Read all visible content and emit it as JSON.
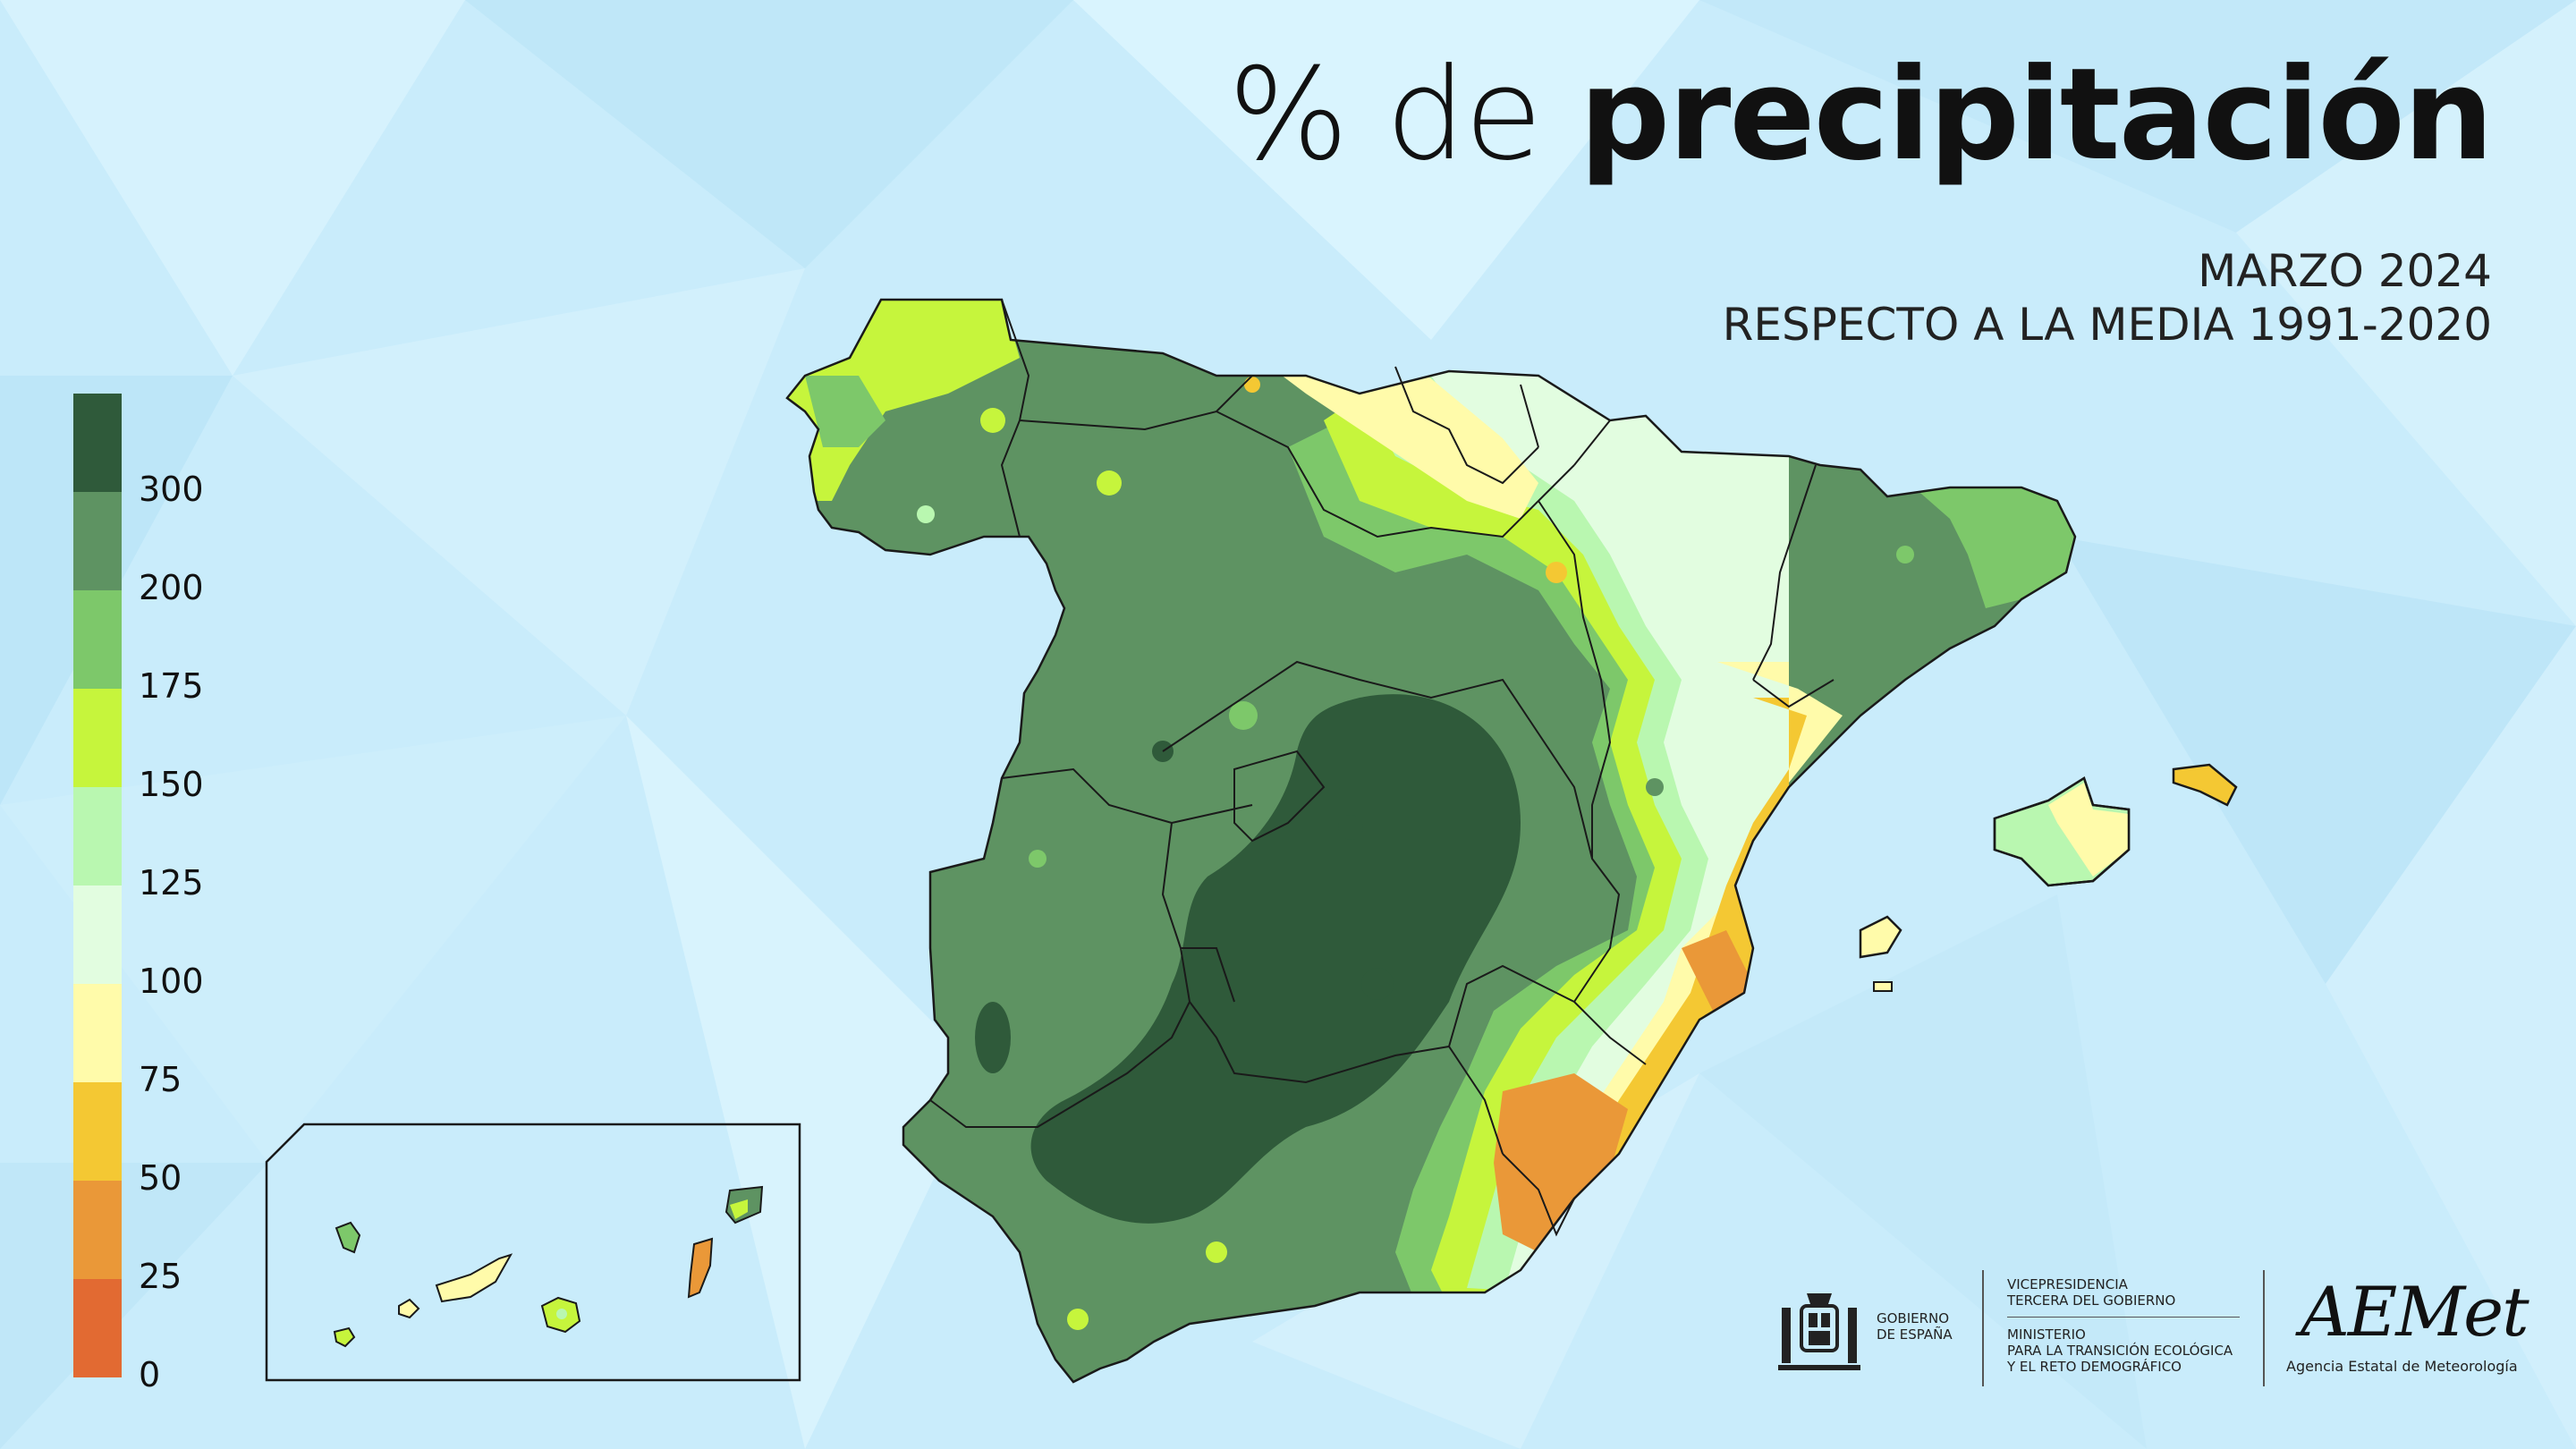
{
  "header": {
    "title_light": "% de ",
    "title_bold": "precipitación",
    "subtitle_line1": "MARZO 2024",
    "subtitle_line2": "RESPECTO A LA MEDIA 1991-2020"
  },
  "legend": {
    "colors": [
      "#2f5a3a",
      "#5e9362",
      "#7dc86a",
      "#c6f53c",
      "#b9f7b0",
      "#e2fde0",
      "#fffbaa",
      "#f4c833",
      "#ea9838",
      "#e26a32"
    ],
    "labels": [
      "300",
      "200",
      "175",
      "150",
      "125",
      "100",
      "75",
      "50",
      "25",
      "0"
    ]
  },
  "map": {
    "region": "Spain",
    "background_color": "#c9ecfb",
    "border_color": "#1a1a1a",
    "inset": "Canary Islands"
  },
  "logos": {
    "gobierno_line1": "GOBIERNO",
    "gobierno_line2": "DE ESPAÑA",
    "vice_line1": "VICEPRESIDENCIA",
    "vice_line2": "TERCERA DEL GOBIERNO",
    "min_line1": "MINISTERIO",
    "min_line2": "PARA LA TRANSICIÓN ECOLÓGICA",
    "min_line3": "Y EL RETO DEMOGRÁFICO",
    "aemet_name": "AEMet",
    "aemet_full": "Agencia Estatal de Meteorología"
  }
}
